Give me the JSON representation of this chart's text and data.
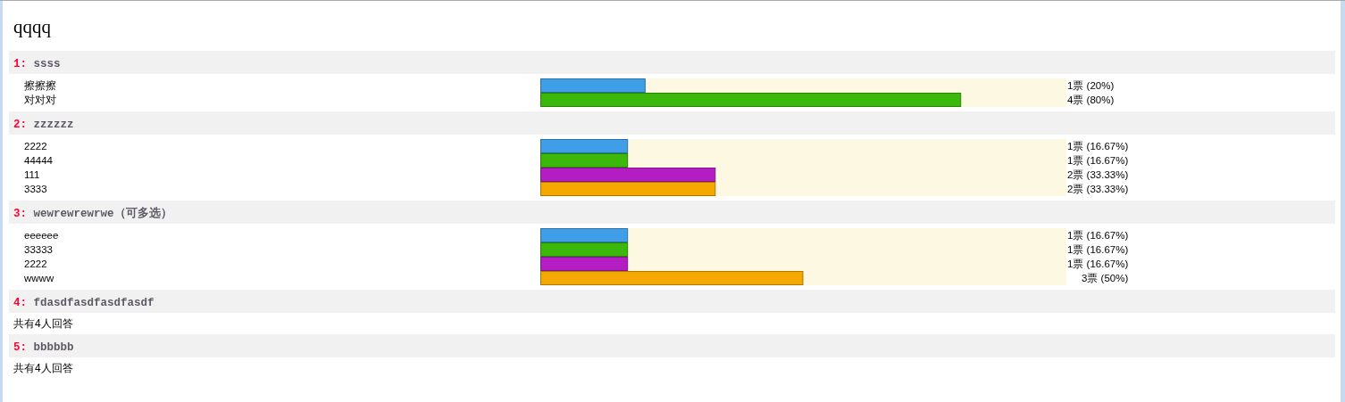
{
  "chart_data": [
    {
      "type": "other",
      "title": "qqqq"
    },
    {
      "type": "bar",
      "orientation": "horizontal",
      "title": "1: ssss",
      "categories": [
        "擦擦擦",
        "对对对"
      ],
      "values": [
        20,
        80
      ],
      "colors": [
        "#3f9ee8",
        "#3cb80c"
      ],
      "value_labels": [
        "1票 (20%)",
        "4票 (80%)"
      ]
    },
    {
      "type": "bar",
      "orientation": "horizontal",
      "title": "2: zzzzzz",
      "categories": [
        "2222",
        "44444",
        "111",
        "3333"
      ],
      "values": [
        16.67,
        16.67,
        33.33,
        33.33
      ],
      "colors": [
        "#3f9ee8",
        "#3cb80c",
        "#b41cc4",
        "#f5a800"
      ],
      "value_labels": [
        "1票 (16.67%)",
        "1票 (16.67%)",
        "2票 (33.33%)",
        "2票 (33.33%)"
      ]
    },
    {
      "type": "bar",
      "orientation": "horizontal",
      "title": "3: wewrewrewrwe（可多选）",
      "categories": [
        "eeeeee",
        "33333",
        "2222",
        "wwww"
      ],
      "values": [
        16.67,
        16.67,
        16.67,
        50
      ],
      "colors": [
        "#3f9ee8",
        "#3cb80c",
        "#b41cc4",
        "#f5a800"
      ],
      "value_labels": [
        "1票 (16.67%)",
        "1票 (16.67%)",
        "1票 (16.67%)",
        "3票 (50%)"
      ]
    },
    {
      "type": "other",
      "title": "4: fdasdfasdfasdfasdf",
      "annotations": [
        "共有4人回答"
      ]
    },
    {
      "type": "other",
      "title": "5: bbbbbb",
      "annotations": [
        "共有4人回答"
      ]
    }
  ]
}
